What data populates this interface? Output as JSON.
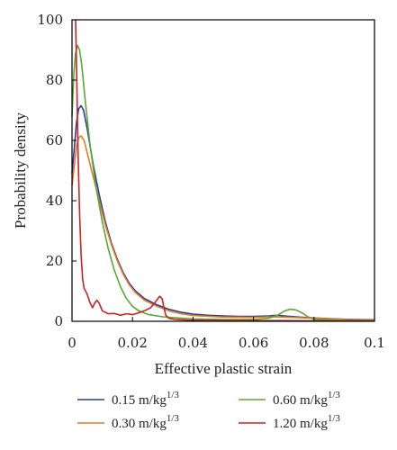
{
  "chart_data": {
    "type": "line",
    "xlabel": "Effective plastic strain",
    "ylabel": "Probability density",
    "xlim": [
      0,
      0.1
    ],
    "ylim": [
      0,
      100
    ],
    "x_ticks": [
      "0",
      "0.02",
      "0.04",
      "0.06",
      "0.08",
      "0.1"
    ],
    "y_ticks": [
      "0",
      "20",
      "40",
      "60",
      "80",
      "100"
    ],
    "grid": false,
    "legend_position": "bottom",
    "series": [
      {
        "name_prefix": "0.15 m/kg",
        "name_exp": "1/3",
        "color": "#2b3a9a",
        "points": [
          [
            0,
            49
          ],
          [
            0.0008,
            58
          ],
          [
            0.0015,
            66
          ],
          [
            0.0022,
            70.5
          ],
          [
            0.003,
            71.5
          ],
          [
            0.0038,
            70
          ],
          [
            0.005,
            64
          ],
          [
            0.007,
            52
          ],
          [
            0.009,
            42
          ],
          [
            0.011,
            33
          ],
          [
            0.013,
            26
          ],
          [
            0.015,
            20.5
          ],
          [
            0.017,
            16
          ],
          [
            0.019,
            12.5
          ],
          [
            0.021,
            10
          ],
          [
            0.024,
            7.5
          ],
          [
            0.028,
            5.5
          ],
          [
            0.032,
            4
          ],
          [
            0.036,
            3
          ],
          [
            0.04,
            2.4
          ],
          [
            0.045,
            2
          ],
          [
            0.05,
            1.8
          ],
          [
            0.055,
            1.6
          ],
          [
            0.06,
            1.6
          ],
          [
            0.065,
            1.8
          ],
          [
            0.068,
            2
          ],
          [
            0.07,
            1.8
          ],
          [
            0.075,
            1.4
          ],
          [
            0.08,
            1.1
          ],
          [
            0.085,
            0.9
          ],
          [
            0.09,
            0.7
          ],
          [
            0.095,
            0.6
          ],
          [
            0.1,
            0.5
          ]
        ]
      },
      {
        "name_prefix": "0.30 m/kg",
        "name_exp": "1/3",
        "color": "#e07b2a",
        "points": [
          [
            0,
            45
          ],
          [
            0.0008,
            52
          ],
          [
            0.0015,
            58
          ],
          [
            0.0022,
            61
          ],
          [
            0.003,
            61.5
          ],
          [
            0.004,
            60
          ],
          [
            0.005,
            56
          ],
          [
            0.007,
            48
          ],
          [
            0.009,
            40
          ],
          [
            0.011,
            32
          ],
          [
            0.013,
            25.5
          ],
          [
            0.015,
            20
          ],
          [
            0.017,
            15.5
          ],
          [
            0.019,
            12
          ],
          [
            0.021,
            9.5
          ],
          [
            0.024,
            7
          ],
          [
            0.028,
            5
          ],
          [
            0.032,
            3.5
          ],
          [
            0.036,
            2.5
          ],
          [
            0.04,
            1.9
          ],
          [
            0.05,
            1.4
          ],
          [
            0.06,
            1.3
          ],
          [
            0.065,
            1.5
          ],
          [
            0.07,
            1.4
          ],
          [
            0.08,
            1
          ],
          [
            0.09,
            0.6
          ],
          [
            0.1,
            0.4
          ]
        ]
      },
      {
        "name_prefix": "0.60 m/kg",
        "name_exp": "1/3",
        "color": "#5aa832",
        "points": [
          [
            0,
            68
          ],
          [
            0.0006,
            82
          ],
          [
            0.0012,
            89
          ],
          [
            0.0018,
            91.5
          ],
          [
            0.0025,
            90
          ],
          [
            0.0032,
            85
          ],
          [
            0.0045,
            72
          ],
          [
            0.006,
            58
          ],
          [
            0.008,
            44
          ],
          [
            0.01,
            33
          ],
          [
            0.012,
            24
          ],
          [
            0.014,
            17
          ],
          [
            0.016,
            11.5
          ],
          [
            0.018,
            7.5
          ],
          [
            0.02,
            5
          ],
          [
            0.022,
            3.5
          ],
          [
            0.025,
            2.3
          ],
          [
            0.03,
            1.5
          ],
          [
            0.035,
            1.1
          ],
          [
            0.04,
            0.8
          ],
          [
            0.05,
            0.6
          ],
          [
            0.06,
            0.6
          ],
          [
            0.065,
            1
          ],
          [
            0.068,
            2
          ],
          [
            0.07,
            3.3
          ],
          [
            0.072,
            4
          ],
          [
            0.074,
            3.8
          ],
          [
            0.076,
            2.8
          ],
          [
            0.078,
            1.5
          ],
          [
            0.08,
            0.7
          ],
          [
            0.085,
            0.4
          ],
          [
            0.09,
            0.3
          ],
          [
            0.1,
            0.2
          ]
        ]
      },
      {
        "name_prefix": "1.20 m/kg",
        "name_exp": "1/3",
        "color": "#cc2222",
        "points": [
          [
            0.0012,
            100
          ],
          [
            0.0016,
            78
          ],
          [
            0.002,
            56
          ],
          [
            0.0025,
            36
          ],
          [
            0.003,
            22
          ],
          [
            0.0035,
            14
          ],
          [
            0.004,
            11
          ],
          [
            0.005,
            9
          ],
          [
            0.006,
            6
          ],
          [
            0.0068,
            4.5
          ],
          [
            0.0075,
            6
          ],
          [
            0.0082,
            7
          ],
          [
            0.009,
            6
          ],
          [
            0.01,
            3.5
          ],
          [
            0.012,
            2.5
          ],
          [
            0.014,
            2.6
          ],
          [
            0.016,
            2
          ],
          [
            0.018,
            2.5
          ],
          [
            0.02,
            2.2
          ],
          [
            0.022,
            2.8
          ],
          [
            0.024,
            3.5
          ],
          [
            0.026,
            4.5
          ],
          [
            0.028,
            7
          ],
          [
            0.029,
            8.3
          ],
          [
            0.0298,
            7.5
          ],
          [
            0.0305,
            4
          ],
          [
            0.031,
            2
          ],
          [
            0.032,
            1
          ],
          [
            0.034,
            0.6
          ],
          [
            0.038,
            0.4
          ],
          [
            0.05,
            0.3
          ],
          [
            0.07,
            0.2
          ],
          [
            0.1,
            0.1
          ]
        ]
      }
    ]
  }
}
